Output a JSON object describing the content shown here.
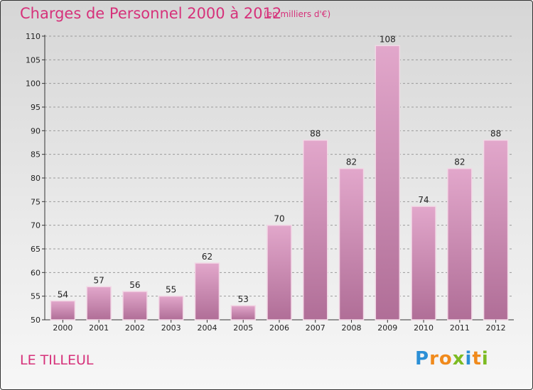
{
  "header": {
    "title": "Charges de Personnel 2000 à 2012",
    "subtitle": "(en milliers d'€)"
  },
  "footer": {
    "commune": "LE TILLEUL",
    "logo_text": "Proxiti"
  },
  "colors": {
    "accent": "#d6317a",
    "bar": "#c77fa8",
    "logo_letters": [
      "#2b8fd6",
      "#f08a1c",
      "#f08a1c",
      "#7cbb23",
      "#2b8fd6",
      "#f08a1c",
      "#7cbb23"
    ]
  },
  "chart_data": {
    "type": "bar",
    "title": "Charges de Personnel 2000 à 2012",
    "subtitle": "(en milliers d'€)",
    "xlabel": "",
    "ylabel": "",
    "categories": [
      "2000",
      "2001",
      "2002",
      "2003",
      "2004",
      "2005",
      "2006",
      "2007",
      "2008",
      "2009",
      "2010",
      "2011",
      "2012"
    ],
    "values": [
      54,
      57,
      56,
      55,
      62,
      53,
      70,
      88,
      82,
      108,
      74,
      82,
      88
    ],
    "ylim": [
      50,
      110
    ],
    "yticks": [
      50,
      55,
      60,
      65,
      70,
      75,
      80,
      85,
      90,
      95,
      100,
      105,
      110
    ],
    "grid": "dashed",
    "legend": "none"
  }
}
